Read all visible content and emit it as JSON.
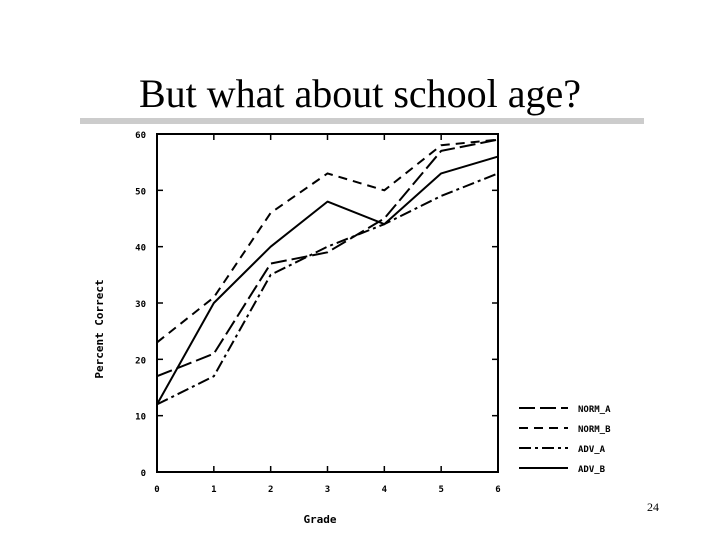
{
  "slide": {
    "title": "But what about school age?",
    "page_number": "24"
  },
  "chart_data": {
    "type": "line",
    "xlabel": "Grade",
    "ylabel": "Percent Correct",
    "x": [
      0,
      1,
      2,
      3,
      4,
      5,
      6
    ],
    "xlim": [
      0,
      6
    ],
    "ylim": [
      0,
      60
    ],
    "xticks": [
      "0",
      "1",
      "2",
      "3",
      "4",
      "5",
      "6"
    ],
    "yticks": [
      "0",
      "10",
      "20",
      "30",
      "40",
      "50",
      "60"
    ],
    "grid": false,
    "legend_position": "bottom-right",
    "series": [
      {
        "name": "NORM_A",
        "values": [
          17,
          21,
          37,
          39,
          45,
          57,
          59
        ],
        "dash": "long-dash"
      },
      {
        "name": "NORM_B",
        "values": [
          23,
          31,
          46,
          53,
          50,
          58,
          59
        ],
        "dash": "dash"
      },
      {
        "name": "ADV_A",
        "values": [
          12,
          17,
          35,
          40,
          44,
          49,
          53
        ],
        "dash": "dash-dot"
      },
      {
        "name": "ADV_B",
        "values": [
          12,
          30,
          40,
          48,
          44,
          53,
          56
        ],
        "dash": "solid"
      }
    ]
  }
}
